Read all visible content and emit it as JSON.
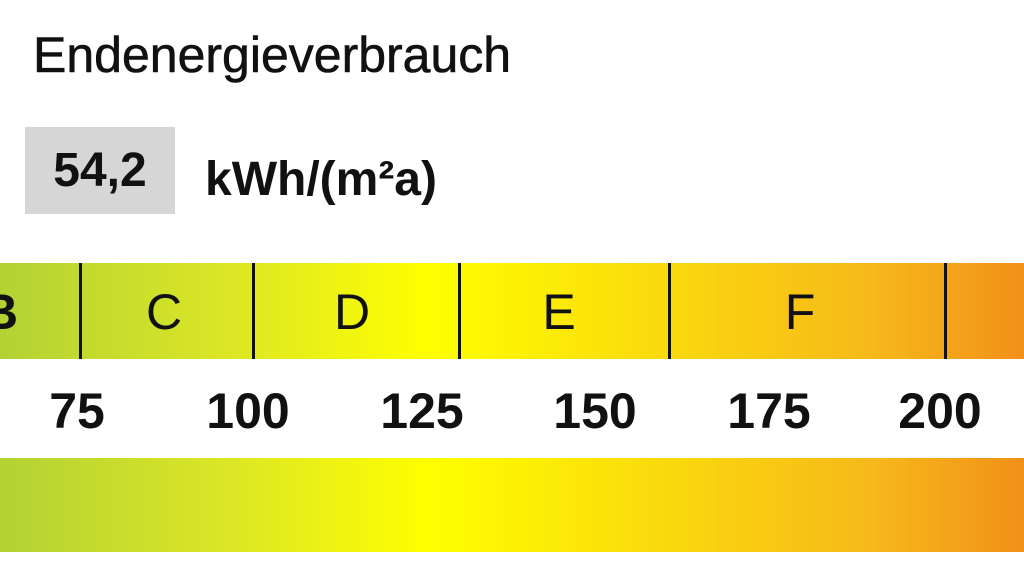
{
  "title": "Endenergieverbrauch",
  "value": "54,2",
  "unit": "kWh/(m²a)",
  "classes": [
    "B",
    "C",
    "D",
    "E",
    "F"
  ],
  "scale_ticks": [
    "75",
    "100",
    "125",
    "150",
    "175",
    "200"
  ],
  "colors": {
    "green": "#b3d234",
    "yellow": "#ffff00",
    "orange": "#f29019",
    "value_box": "#d6d6d6"
  }
}
